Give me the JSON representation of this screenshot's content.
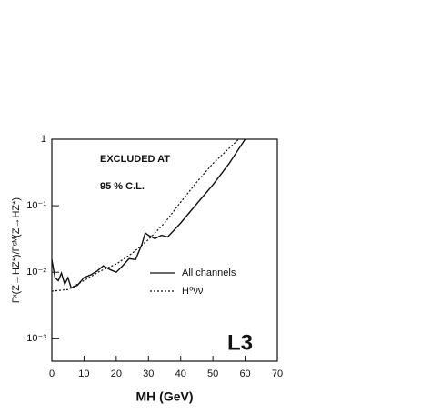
{
  "chart_data": {
    "type": "line",
    "x_label": "MH (GeV)",
    "y_label": "Γˣ(Z→HZ*)/Γˢᴹ(Z→HZ*)",
    "annotations": [
      "EXCLUDED AT",
      "95 % C.L.",
      "L3"
    ],
    "xlim": [
      0,
      70
    ],
    "xticks": [
      0,
      10,
      20,
      30,
      40,
      50,
      60,
      70
    ],
    "ylim": [
      0.00046,
      1
    ],
    "log_y": true,
    "yticks": [
      {
        "value": 1,
        "label": "1"
      },
      {
        "value": 0.1,
        "label": "10⁻¹"
      },
      {
        "value": 0.01,
        "label": "10⁻²"
      },
      {
        "value": 0.001,
        "label": "10⁻³"
      }
    ],
    "legend": "right",
    "series": [
      {
        "name": "All channels",
        "color": "#111111",
        "dash": "solid",
        "x": [
          0,
          1,
          2,
          3,
          4,
          5,
          6,
          8,
          10,
          12,
          14,
          16,
          18,
          20,
          22,
          24,
          26,
          28,
          29,
          30,
          32,
          34,
          36,
          40,
          45,
          50,
          55,
          60
        ],
        "values": [
          0.0155,
          0.0083,
          0.0075,
          0.0097,
          0.0066,
          0.0083,
          0.0058,
          0.0064,
          0.0083,
          0.0091,
          0.0104,
          0.0125,
          0.011,
          0.01,
          0.0125,
          0.016,
          0.0155,
          0.0266,
          0.039,
          0.036,
          0.032,
          0.036,
          0.034,
          0.055,
          0.107,
          0.206,
          0.43,
          1.0
        ]
      },
      {
        "name": "H⁰νν",
        "color": "#111111",
        "dash": "dotted",
        "x": [
          0,
          5,
          10,
          15,
          20,
          25,
          30,
          35,
          40,
          45,
          50,
          55,
          58
        ],
        "values": [
          0.0052,
          0.0055,
          0.0075,
          0.0104,
          0.0133,
          0.0194,
          0.031,
          0.055,
          0.113,
          0.227,
          0.43,
          0.73,
          1.0
        ]
      }
    ]
  }
}
